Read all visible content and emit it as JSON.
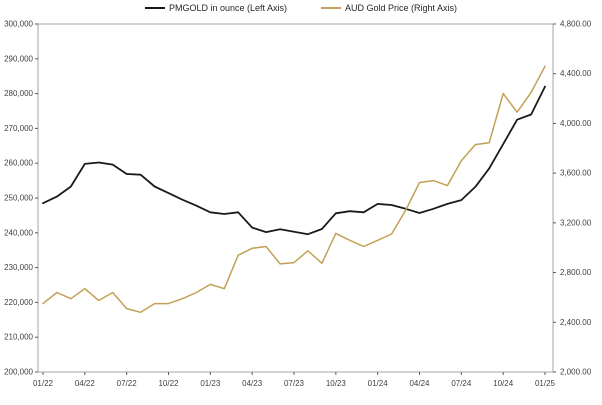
{
  "legend": {
    "items": [
      {
        "label": "PMGOLD in ounce (Left Axis)",
        "color": "#1a1a1a"
      },
      {
        "label": "AUD Gold Price (Right Axis)",
        "color": "#c3a055"
      }
    ]
  },
  "chart_data": {
    "type": "line",
    "x_unit": "month",
    "n_points": 37,
    "x_tick_labels": [
      "01/22",
      "04/22",
      "07/22",
      "10/22",
      "01/23",
      "04/23",
      "07/23",
      "10/23",
      "01/24",
      "04/24",
      "07/24",
      "10/24",
      "01/25"
    ],
    "x_tick_every_n_points": 3,
    "series": [
      {
        "name": "PMGOLD in ounce (Left Axis)",
        "axis": "left",
        "color": "#1a1a1a",
        "stroke_width": 1.8,
        "values": [
          248500,
          250400,
          253300,
          259800,
          260200,
          259600,
          256900,
          256700,
          253300,
          251400,
          249500,
          247800,
          245900,
          245400,
          245900,
          241500,
          240200,
          241000,
          240300,
          239600,
          241100,
          245600,
          246200,
          245900,
          248300,
          248000,
          246900,
          245700,
          246900,
          248300,
          249400,
          253200,
          258500,
          265500,
          272500,
          274000,
          282000
        ]
      },
      {
        "name": "AUD Gold Price (Right Axis)",
        "axis": "right",
        "color": "#c3a055",
        "stroke_width": 1.5,
        "values": [
          2550,
          2640,
          2590,
          2670,
          2575,
          2640,
          2510,
          2480,
          2550,
          2550,
          2590,
          2640,
          2705,
          2670,
          2940,
          2995,
          3010,
          2870,
          2880,
          2975,
          2875,
          3115,
          3060,
          3010,
          3060,
          3110,
          3300,
          3525,
          3540,
          3500,
          3700,
          3830,
          3845,
          4240,
          4090,
          4250,
          4460
        ]
      }
    ],
    "left_axis": {
      "range": [
        200000,
        300000
      ],
      "step": 10000,
      "labels_top_to_bottom": [
        "300,000",
        "290,000",
        "280,000",
        "270,000",
        "260,000",
        "250,000",
        "240,000",
        "230,000",
        "220,000",
        "210,000",
        "200,000"
      ]
    },
    "right_axis": {
      "range": [
        2000,
        4800
      ],
      "step": 400,
      "labels_top_to_bottom": [
        "4,800.00",
        "4,400.00",
        "4,000.00",
        "3,600.00",
        "3,200.00",
        "2,800.00",
        "2,400.00",
        "2,000.00"
      ]
    },
    "grid": false,
    "legend_position": "top-center",
    "plot_border_color": "#a6a6a6",
    "tick_color": "#595959",
    "background": "#ffffff"
  }
}
